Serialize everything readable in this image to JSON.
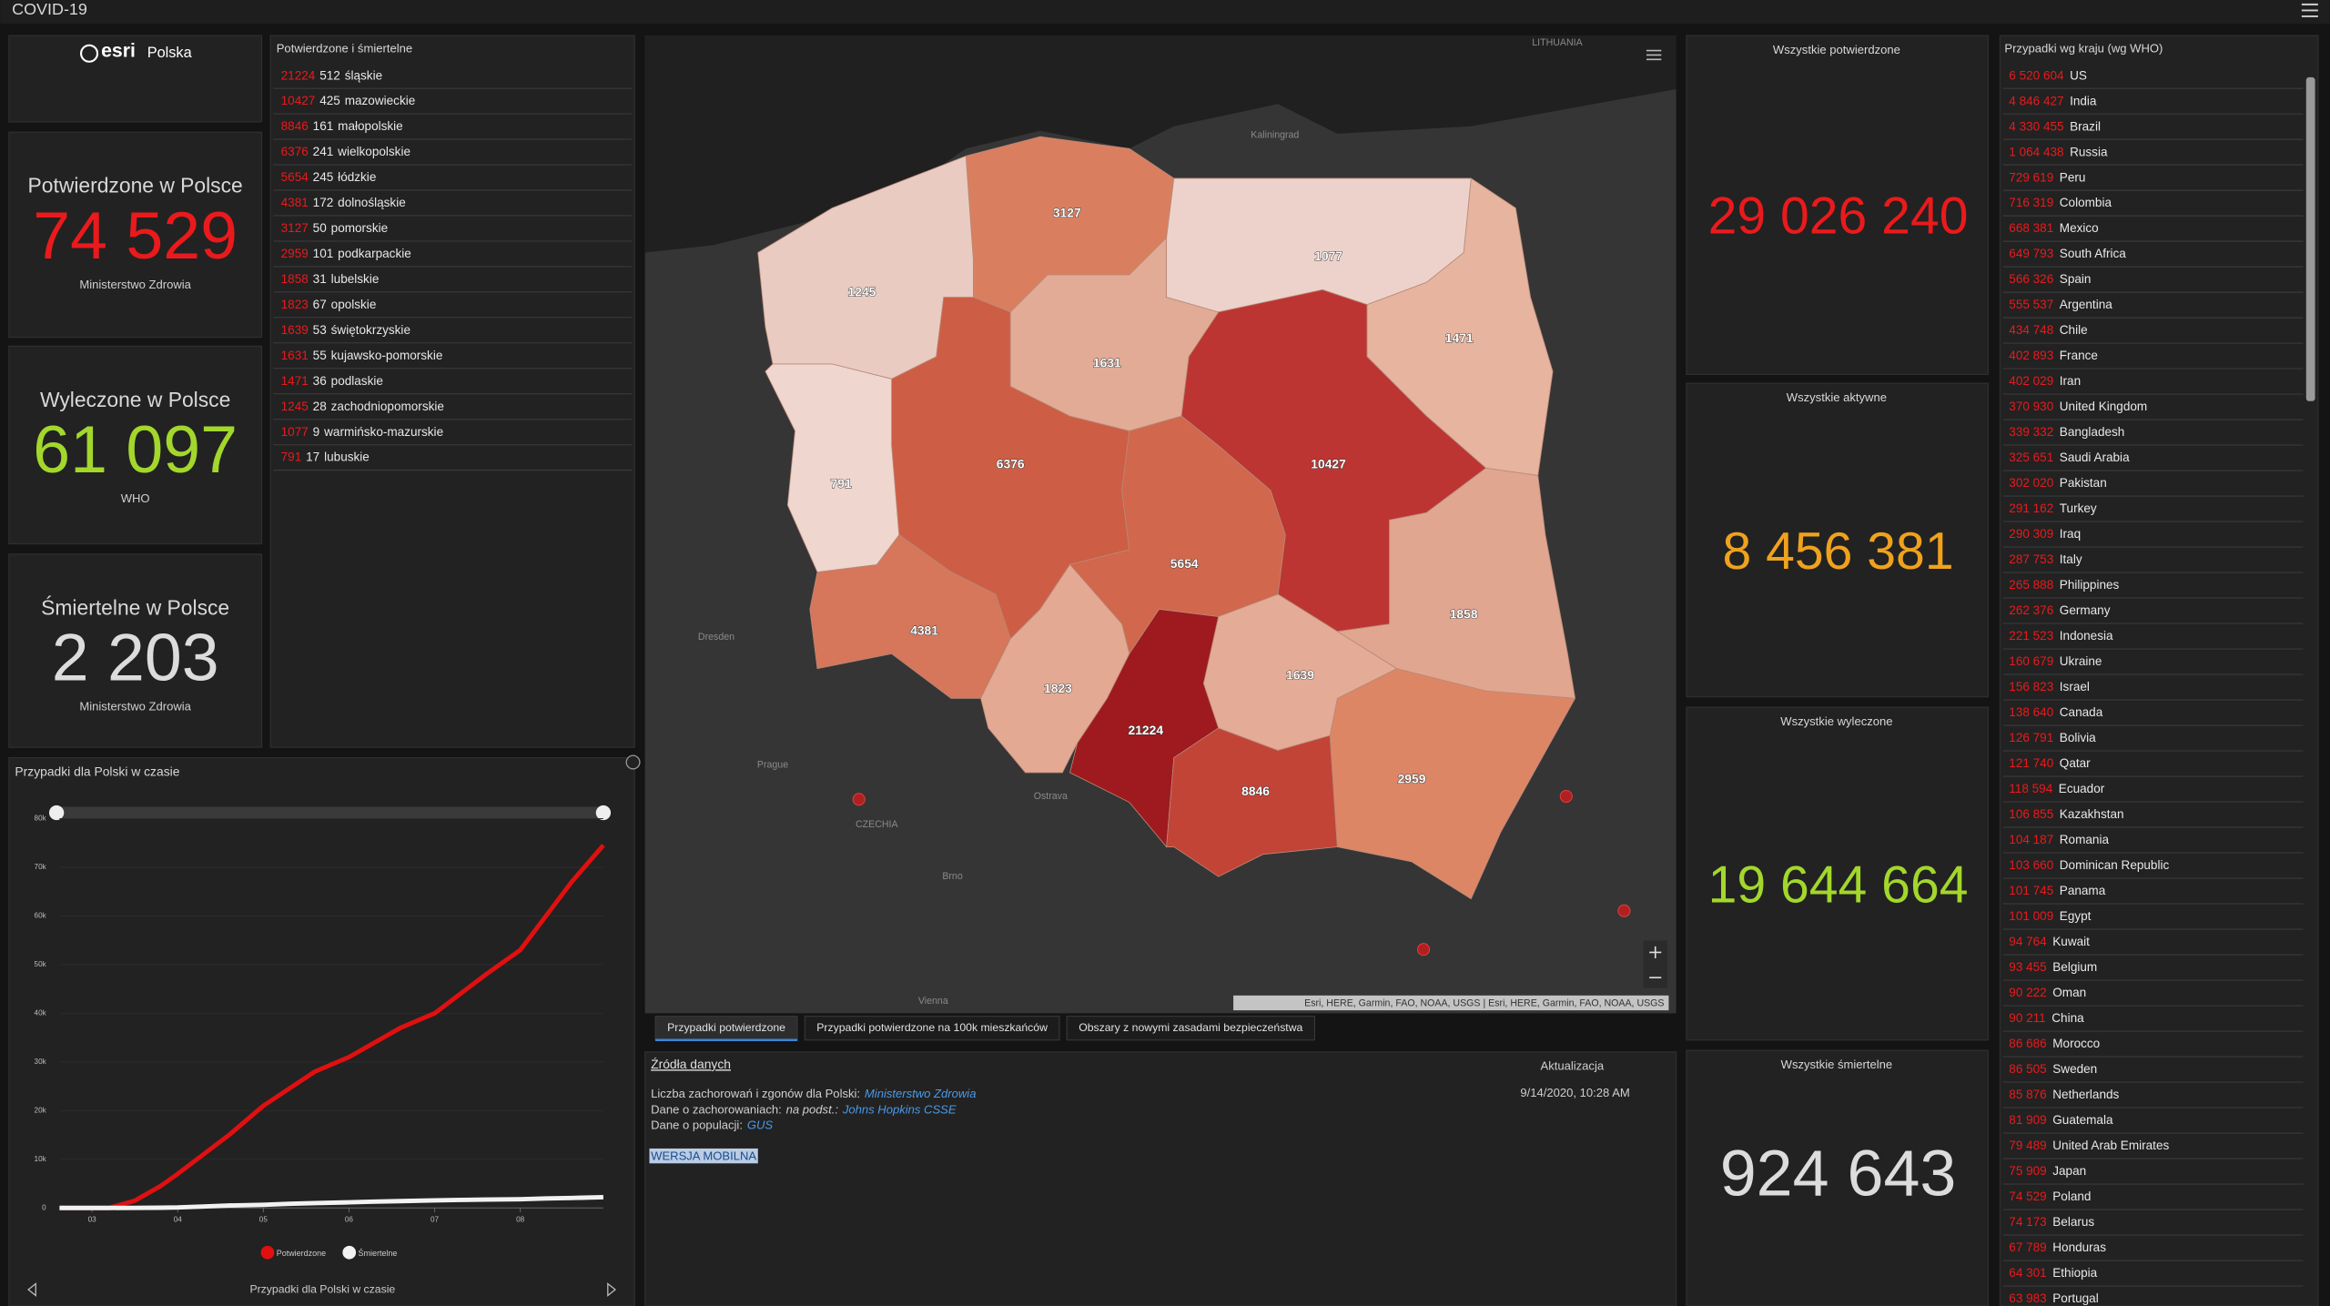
{
  "header": {
    "title": "COVID-19"
  },
  "logo": {
    "brand": "esri",
    "country": "Polska"
  },
  "poland_kpis": [
    {
      "title": "Potwierdzone w Polsce",
      "value": "74 529",
      "source": "Ministerstwo Zdrowia",
      "color": "#ea1a1c"
    },
    {
      "title": "Wyleczone w Polsce",
      "value": "61 097",
      "source": "WHO",
      "color": "#a3d72c"
    },
    {
      "title": "Śmiertelne w Polsce",
      "value": "2 203",
      "source": "Ministerstwo Zdrowia",
      "color": "#dcdcdc"
    }
  ],
  "regions_list": {
    "title": "Potwierdzone i śmiertelne",
    "rows": [
      {
        "confirmed": 21224,
        "deaths": 512,
        "name": "śląskie"
      },
      {
        "confirmed": 10427,
        "deaths": 425,
        "name": "mazowieckie"
      },
      {
        "confirmed": 8846,
        "deaths": 161,
        "name": "małopolskie"
      },
      {
        "confirmed": 6376,
        "deaths": 241,
        "name": "wielkopolskie"
      },
      {
        "confirmed": 5654,
        "deaths": 245,
        "name": "łódzkie"
      },
      {
        "confirmed": 4381,
        "deaths": 172,
        "name": "dolnośląskie"
      },
      {
        "confirmed": 3127,
        "deaths": 50,
        "name": "pomorskie"
      },
      {
        "confirmed": 2959,
        "deaths": 101,
        "name": "podkarpackie"
      },
      {
        "confirmed": 1858,
        "deaths": 31,
        "name": "lubelskie"
      },
      {
        "confirmed": 1823,
        "deaths": 67,
        "name": "opolskie"
      },
      {
        "confirmed": 1639,
        "deaths": 53,
        "name": "świętokrzyskie"
      },
      {
        "confirmed": 1631,
        "deaths": 55,
        "name": "kujawsko-pomorskie"
      },
      {
        "confirmed": 1471,
        "deaths": 36,
        "name": "podlaskie"
      },
      {
        "confirmed": 1245,
        "deaths": 28,
        "name": "zachodniopomorskie"
      },
      {
        "confirmed": 1077,
        "deaths": 9,
        "name": "warmińsko-mazurskie"
      },
      {
        "confirmed": 791,
        "deaths": 17,
        "name": "lubuskie"
      }
    ]
  },
  "map": {
    "region_colors": [
      "#9e1a1f",
      "#bc3532",
      "#c24437",
      "#cd5e45",
      "#d1674c",
      "#d6765a",
      "#d97f60",
      "#dd8666",
      "#e1a690",
      "#e3a993",
      "#e4ac97",
      "#e2ab95",
      "#e6b49f",
      "#e9cbc2",
      "#ecd2ca",
      "#efd6cf"
    ],
    "places": [
      "Kaliningrad",
      "LITHUANIA",
      "Dresden",
      "Prague",
      "CZECHIA",
      "Brno",
      "Ostrava",
      "Vienna"
    ],
    "attribution": "Esri, HERE, Garmin, FAO, NOAA, USGS | Esri, HERE, Garmin, FAO, NOAA, USGS"
  },
  "tabs": {
    "items": [
      "Przypadki potwierdzone",
      "Przypadki potwierdzone na 100k mieszkańców",
      "Obszary z nowymi zasadami bezpieczeństwa"
    ],
    "active": 0
  },
  "sources": {
    "title": "Źródła danych",
    "lines": [
      [
        {
          "text": "Liczba zachorowań i zgonów dla Polski:",
          "style": "normal"
        },
        {
          "text": "Ministerstwo Zdrowia",
          "style": "link"
        }
      ],
      [
        {
          "text": "Dane o zachorowaniach:",
          "style": "normal"
        },
        {
          "text": "na podst.:",
          "style": "italic"
        },
        {
          "text": "Johns Hopkins CSSE",
          "style": "link"
        }
      ],
      [
        {
          "text": "Dane o populacji:",
          "style": "normal"
        },
        {
          "text": "GUS",
          "style": "link"
        }
      ]
    ],
    "mobile": "WERSJA MOBILNA",
    "update_label": "Aktualizacja",
    "update_time": "9/14/2020, 10:28 AM"
  },
  "world_kpis": [
    {
      "title": "Wszystkie potwierdzone",
      "value": "29 026 240",
      "color": "#ea1a1c"
    },
    {
      "title": "Wszystkie aktywne",
      "value": "8 456 381",
      "color": "#f0a21e"
    },
    {
      "title": "Wszystkie wyleczone",
      "value": "19 644 664",
      "color": "#a3d72c"
    },
    {
      "title": "Wszystkie śmiertelne",
      "value": "924 643",
      "color": "#dcdcdc"
    }
  ],
  "countries": {
    "title": "Przypadki wg kraju (wg WHO)",
    "rows": [
      {
        "value": "6 520 604",
        "name": "US"
      },
      {
        "value": "4 846 427",
        "name": "India"
      },
      {
        "value": "4 330 455",
        "name": "Brazil"
      },
      {
        "value": "1 064 438",
        "name": "Russia"
      },
      {
        "value": "729 619",
        "name": "Peru"
      },
      {
        "value": "716 319",
        "name": "Colombia"
      },
      {
        "value": "668 381",
        "name": "Mexico"
      },
      {
        "value": "649 793",
        "name": "South Africa"
      },
      {
        "value": "566 326",
        "name": "Spain"
      },
      {
        "value": "555 537",
        "name": "Argentina"
      },
      {
        "value": "434 748",
        "name": "Chile"
      },
      {
        "value": "402 893",
        "name": "France"
      },
      {
        "value": "402 029",
        "name": "Iran"
      },
      {
        "value": "370 930",
        "name": "United Kingdom"
      },
      {
        "value": "339 332",
        "name": "Bangladesh"
      },
      {
        "value": "325 651",
        "name": "Saudi Arabia"
      },
      {
        "value": "302 020",
        "name": "Pakistan"
      },
      {
        "value": "291 162",
        "name": "Turkey"
      },
      {
        "value": "290 309",
        "name": "Iraq"
      },
      {
        "value": "287 753",
        "name": "Italy"
      },
      {
        "value": "265 888",
        "name": "Philippines"
      },
      {
        "value": "262 376",
        "name": "Germany"
      },
      {
        "value": "221 523",
        "name": "Indonesia"
      },
      {
        "value": "160 679",
        "name": "Ukraine"
      },
      {
        "value": "156 823",
        "name": "Israel"
      },
      {
        "value": "138 640",
        "name": "Canada"
      },
      {
        "value": "126 791",
        "name": "Bolivia"
      },
      {
        "value": "121 740",
        "name": "Qatar"
      },
      {
        "value": "118 594",
        "name": "Ecuador"
      },
      {
        "value": "106 855",
        "name": "Kazakhstan"
      },
      {
        "value": "104 187",
        "name": "Romania"
      },
      {
        "value": "103 660",
        "name": "Dominican Republic"
      },
      {
        "value": "101 745",
        "name": "Panama"
      },
      {
        "value": "101 009",
        "name": "Egypt"
      },
      {
        "value": "94 764",
        "name": "Kuwait"
      },
      {
        "value": "93 455",
        "name": "Belgium"
      },
      {
        "value": "90 222",
        "name": "Oman"
      },
      {
        "value": "90 211",
        "name": "China"
      },
      {
        "value": "86 686",
        "name": "Morocco"
      },
      {
        "value": "86 505",
        "name": "Sweden"
      },
      {
        "value": "85 876",
        "name": "Netherlands"
      },
      {
        "value": "81 909",
        "name": "Guatemala"
      },
      {
        "value": "79 489",
        "name": "United Arab Emirates"
      },
      {
        "value": "75 909",
        "name": "Japan"
      },
      {
        "value": "74 529",
        "name": "Poland"
      },
      {
        "value": "74 173",
        "name": "Belarus"
      },
      {
        "value": "67 789",
        "name": "Honduras"
      },
      {
        "value": "64 301",
        "name": "Ethiopia"
      },
      {
        "value": "63 983",
        "name": "Portugal"
      }
    ]
  },
  "chart_data": {
    "type": "line",
    "title": "Przypadki dla Polski w czasie",
    "footer": "Przypadki dla Polski w czasie",
    "x": [
      2.62,
      3.2,
      3.5,
      3.8,
      4.0,
      4.3,
      4.6,
      5.0,
      5.3,
      5.6,
      6.0,
      6.3,
      6.6,
      7.0,
      7.3,
      7.6,
      8.0,
      8.3,
      8.6,
      8.97
    ],
    "xlim": [
      2.62,
      8.97
    ],
    "xticks": [
      {
        "value": 3,
        "label": "03"
      },
      {
        "value": 4,
        "label": "04"
      },
      {
        "value": 5,
        "label": "05"
      },
      {
        "value": 6,
        "label": "06"
      },
      {
        "value": 7,
        "label": "07"
      },
      {
        "value": 8,
        "label": "08"
      }
    ],
    "ylim": [
      0,
      80000
    ],
    "yticks": [
      0,
      {
        "value": 10000,
        "label": "10k"
      },
      {
        "value": 20000,
        "label": "20k"
      },
      {
        "value": 30000,
        "label": "30k"
      },
      {
        "value": 40000,
        "label": "40k"
      },
      {
        "value": 50000,
        "label": "50k"
      },
      {
        "value": 60000,
        "label": "60k"
      },
      {
        "value": 70000,
        "label": "70k"
      },
      {
        "value": 80000,
        "label": "80k"
      }
    ],
    "grid": true,
    "series": [
      {
        "name": "Potwierdzone",
        "color": "#e01010",
        "values": [
          0,
          0,
          1500,
          4500,
          7000,
          11000,
          15000,
          21000,
          24500,
          28000,
          31000,
          34000,
          37000,
          40000,
          44000,
          48000,
          53000,
          60000,
          67000,
          74529
        ]
      },
      {
        "name": "Śmiertelne",
        "color": "#f2f2f2",
        "values": [
          0,
          0,
          10,
          50,
          100,
          300,
          500,
          650,
          850,
          1000,
          1150,
          1300,
          1400,
          1550,
          1650,
          1720,
          1800,
          1950,
          2050,
          2203
        ]
      }
    ]
  }
}
